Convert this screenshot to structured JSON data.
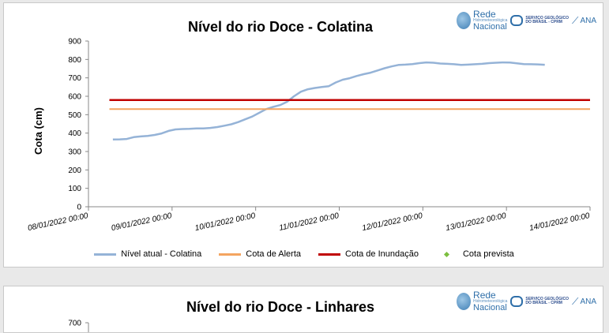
{
  "charts": [
    {
      "title": "Nível do rio Doce - Colatina",
      "logos": {
        "rede_1": "Rede",
        "rede_2": "Hidrometeorológica",
        "rede_3": "Nacional",
        "sgb_1": "SERVIÇO GEOLÓGICO",
        "sgb_2": "DO BRASIL - CPRM",
        "ana": "ANA"
      }
    },
    {
      "title": "Nível do rio Doce - Linhares",
      "logos": {
        "rede_1": "Rede",
        "rede_2": "Hidrometeorológica",
        "rede_3": "Nacional",
        "sgb_1": "SERVIÇO GEOLÓGICO",
        "sgb_2": "DO BRASIL - CPRM",
        "ana": "ANA"
      }
    }
  ],
  "chart_data": [
    {
      "type": "line",
      "title": "Nível do rio Doce - Colatina",
      "xlabel": "",
      "ylabel": "Cota (cm)",
      "ylim": [
        0,
        900
      ],
      "yticks": [
        0,
        100,
        200,
        300,
        400,
        500,
        600,
        700,
        800,
        900
      ],
      "xlim": [
        "08/01/2022 00:00",
        "14/01/2022 00:00"
      ],
      "xtick_labels": [
        "08/01/2022 00:00",
        "09/01/2022 00:00",
        "10/01/2022 00:00",
        "11/01/2022 00:00",
        "12/01/2022 00:00",
        "13/01/2022 00:00",
        "14/01/2022 00:00"
      ],
      "grid": false,
      "legend_position": "bottom",
      "series": [
        {
          "name": "Nível atual - Colatina",
          "color": "#95b3d7",
          "x": [
            "08/01/2022 07:00",
            "08/01/2022 09:00",
            "08/01/2022 11:00",
            "08/01/2022 13:00",
            "08/01/2022 15:00",
            "08/01/2022 17:00",
            "08/01/2022 19:00",
            "08/01/2022 21:00",
            "08/01/2022 23:00",
            "09/01/2022 01:00",
            "09/01/2022 03:00",
            "09/01/2022 05:00",
            "09/01/2022 07:00",
            "09/01/2022 09:00",
            "09/01/2022 11:00",
            "09/01/2022 13:00",
            "09/01/2022 15:00",
            "09/01/2022 17:00",
            "09/01/2022 19:00",
            "09/01/2022 21:00",
            "09/01/2022 23:00",
            "10/01/2022 01:00",
            "10/01/2022 03:00",
            "10/01/2022 05:00",
            "10/01/2022 07:00",
            "10/01/2022 09:00",
            "10/01/2022 11:00",
            "10/01/2022 13:00",
            "10/01/2022 15:00",
            "10/01/2022 17:00",
            "10/01/2022 19:00",
            "10/01/2022 21:00",
            "10/01/2022 23:00",
            "11/01/2022 01:00",
            "11/01/2022 03:00",
            "11/01/2022 05:00",
            "11/01/2022 07:00",
            "11/01/2022 09:00",
            "11/01/2022 11:00",
            "11/01/2022 13:00",
            "11/01/2022 15:00",
            "11/01/2022 17:00",
            "11/01/2022 19:00",
            "11/01/2022 21:00",
            "11/01/2022 23:00",
            "12/01/2022 01:00",
            "12/01/2022 03:00",
            "12/01/2022 05:00",
            "12/01/2022 07:00",
            "12/01/2022 09:00",
            "12/01/2022 11:00",
            "12/01/2022 13:00",
            "12/01/2022 15:00",
            "12/01/2022 17:00",
            "12/01/2022 19:00",
            "12/01/2022 21:00",
            "12/01/2022 23:00",
            "13/01/2022 01:00",
            "13/01/2022 03:00",
            "13/01/2022 05:00",
            "13/01/2022 07:00",
            "13/01/2022 09:00",
            "13/01/2022 11:00"
          ],
          "values": [
            365,
            366,
            368,
            378,
            382,
            385,
            390,
            398,
            412,
            420,
            422,
            423,
            425,
            425,
            428,
            433,
            440,
            448,
            460,
            475,
            490,
            510,
            530,
            542,
            552,
            570,
            600,
            625,
            638,
            645,
            650,
            655,
            675,
            690,
            698,
            710,
            720,
            728,
            740,
            752,
            762,
            770,
            772,
            775,
            780,
            784,
            782,
            778,
            776,
            774,
            770,
            772,
            774,
            776,
            780,
            782,
            784,
            783,
            779,
            775,
            774,
            773,
            771
          ]
        },
        {
          "name": "Cota de Alerta",
          "color": "#f4a460",
          "x": [
            "08/01/2022 06:00",
            "14/01/2022 00:00"
          ],
          "values": [
            530,
            530
          ]
        },
        {
          "name": "Cota de Inundação",
          "color": "#c00000",
          "x": [
            "08/01/2022 06:00",
            "14/01/2022 00:00"
          ],
          "values": [
            580,
            580
          ]
        },
        {
          "name": "Cota prevista",
          "color": "#7cbf3f",
          "x": [],
          "values": []
        }
      ]
    },
    {
      "type": "line",
      "title": "Nível do rio Doce - Linhares",
      "xlabel": "",
      "ylabel": "",
      "ylim": [
        0,
        700
      ],
      "yticks_visible": [
        700
      ],
      "grid": false,
      "series": []
    }
  ]
}
